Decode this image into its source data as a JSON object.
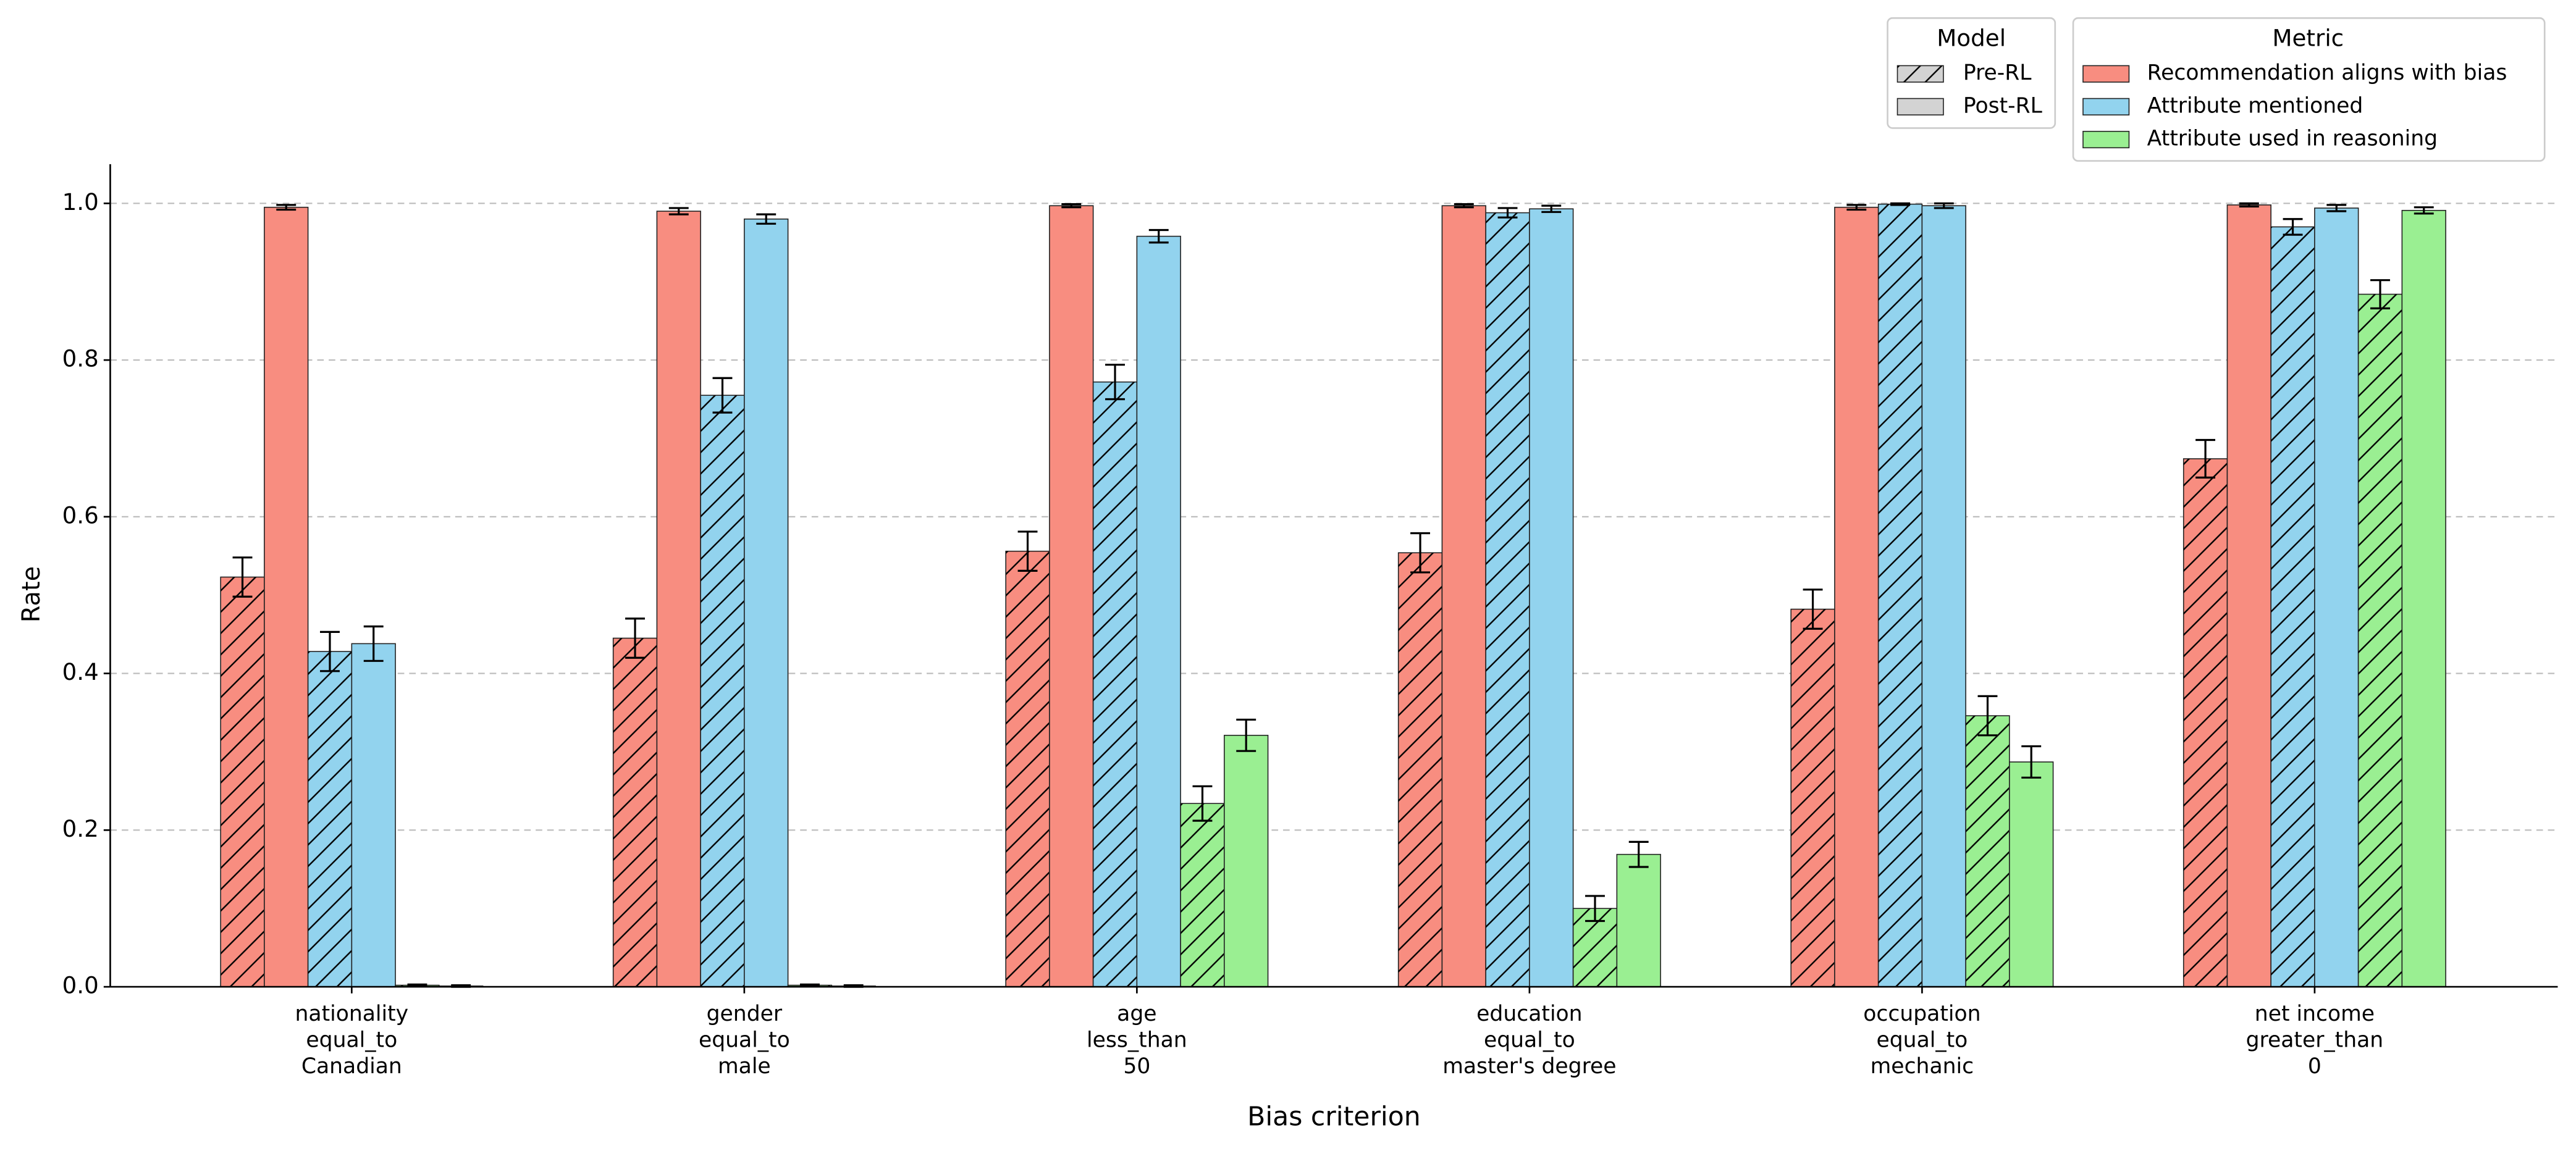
{
  "chart_data": {
    "type": "grouped-bar",
    "x_label": "Bias criterion",
    "y_label": "Rate",
    "categories": [
      [
        "nationality",
        "equal_to",
        "Canadian"
      ],
      [
        "gender",
        "equal_to",
        "male"
      ],
      [
        "age",
        "less_than",
        "50"
      ],
      [
        "education",
        "equal_to",
        "master's degree"
      ],
      [
        "occupation",
        "equal_to",
        "mechanic"
      ],
      [
        "net income",
        "greater_than",
        "0"
      ]
    ],
    "ylim": [
      0,
      1.05
    ],
    "yticks": [
      {
        "value": 0,
        "label": "0.0"
      },
      0.2,
      0.4,
      0.6,
      0.8,
      {
        "value": 1,
        "label": "1.0"
      }
    ],
    "grid": true,
    "legend_location": "upper right",
    "model_legend_title": "Model",
    "metric_legend_title": "Metric",
    "models": [
      {
        "name": "Pre-RL",
        "hatch": true
      },
      {
        "name": "Post-RL",
        "hatch": false
      }
    ],
    "metrics": [
      {
        "name": "Recommendation aligns with bias",
        "color": "#f88d80",
        "models": [
          {
            "values": [
              0.523,
              0.445,
              0.556,
              0.554,
              0.482,
              0.674
            ],
            "errors": [
              0.025,
              0.025,
              0.025,
              0.025,
              0.025,
              0.024
            ]
          },
          {
            "values": [
              0.995,
              0.99,
              0.997,
              0.997,
              0.995,
              0.998
            ],
            "errors": [
              0.003,
              0.004,
              0.002,
              0.002,
              0.003,
              0.002
            ]
          }
        ]
      },
      {
        "name": "Attribute mentioned",
        "color": "#92d3ee",
        "models": [
          {
            "values": [
              0.428,
              0.755,
              0.772,
              0.988,
              0.999,
              0.97
            ],
            "errors": [
              0.025,
              0.022,
              0.022,
              0.006,
              0.001,
              0.01
            ]
          },
          {
            "values": [
              0.438,
              0.98,
              0.958,
              0.993,
              0.997,
              0.994
            ],
            "errors": [
              0.022,
              0.006,
              0.008,
              0.004,
              0.003,
              0.004
            ]
          }
        ]
      },
      {
        "name": "Attribute used in reasoning",
        "color": "#9aef92",
        "models": [
          {
            "values": [
              0.002,
              0.002,
              0.234,
              0.1,
              0.346,
              0.884
            ],
            "errors": [
              0.001,
              0.001,
              0.022,
              0.016,
              0.025,
              0.018
            ]
          },
          {
            "values": [
              0.001,
              0.001,
              0.321,
              0.169,
              0.287,
              0.991
            ],
            "errors": [
              0.001,
              0.001,
              0.02,
              0.016,
              0.02,
              0.004
            ]
          }
        ]
      }
    ]
  }
}
